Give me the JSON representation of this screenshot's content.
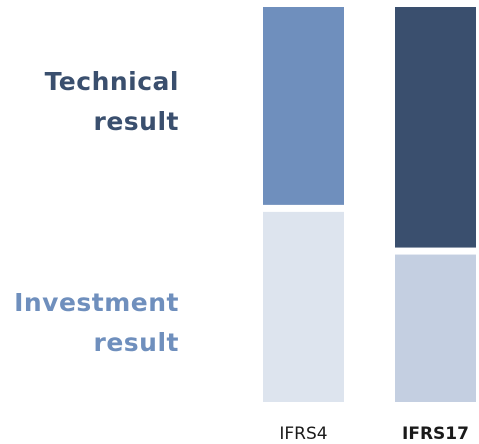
{
  "chart_data": {
    "type": "stacked-bar",
    "categories": [
      "IFRS4",
      "IFRS17"
    ],
    "highlight_index": 1,
    "series": [
      {
        "name": "Technical result",
        "color": "#3a4f6e",
        "colors": [
          "#6f8fbd",
          "#3a4f6e"
        ],
        "values": [
          51,
          62
        ]
      },
      {
        "name": "Investment result",
        "color": "#6f8fbd",
        "colors": [
          "#dde4ee",
          "#c4cfe1"
        ],
        "values": [
          49,
          38
        ]
      }
    ],
    "ylim": [
      0,
      100
    ]
  }
}
